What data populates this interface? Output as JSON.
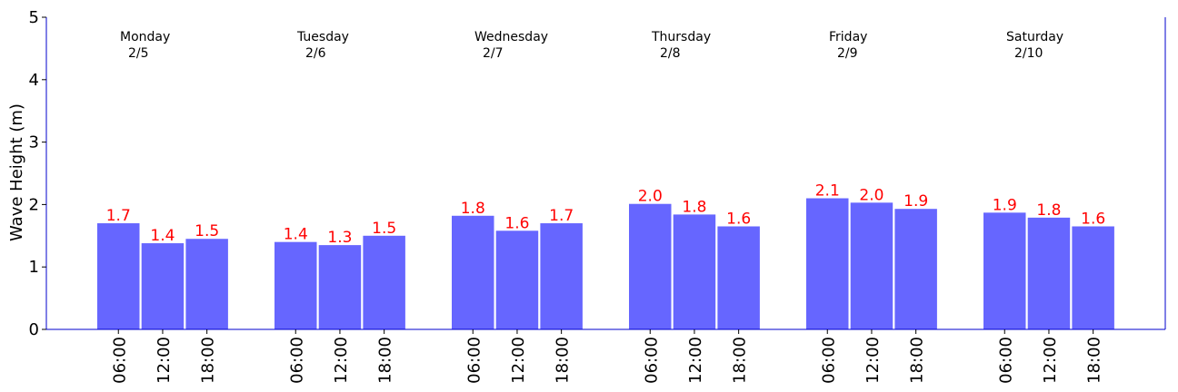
{
  "chart_data": {
    "type": "bar",
    "ylabel": "Wave Height (m)",
    "ylim": [
      0,
      5
    ],
    "yticks": [
      "0",
      "1",
      "2",
      "3",
      "4",
      "5"
    ],
    "bar_color": "#6666ff",
    "label_color": "#ff0000",
    "axis_color": "#0000cc",
    "days": [
      {
        "name": "Monday",
        "date": "2/5",
        "times": [
          "06:00",
          "12:00",
          "18:00"
        ],
        "values": [
          1.7,
          1.38,
          1.45
        ],
        "labels": [
          "1.7",
          "1.4",
          "1.5"
        ]
      },
      {
        "name": "Tuesday",
        "date": "2/6",
        "times": [
          "06:00",
          "12:00",
          "18:00"
        ],
        "values": [
          1.4,
          1.35,
          1.5
        ],
        "labels": [
          "1.4",
          "1.3",
          "1.5"
        ]
      },
      {
        "name": "Wednesday",
        "date": "2/7",
        "times": [
          "06:00",
          "12:00",
          "18:00"
        ],
        "values": [
          1.82,
          1.58,
          1.7
        ],
        "labels": [
          "1.8",
          "1.6",
          "1.7"
        ]
      },
      {
        "name": "Thursday",
        "date": "2/8",
        "times": [
          "06:00",
          "12:00",
          "18:00"
        ],
        "values": [
          2.01,
          1.84,
          1.65
        ],
        "labels": [
          "2.0",
          "1.8",
          "1.6"
        ]
      },
      {
        "name": "Friday",
        "date": "2/9",
        "times": [
          "06:00",
          "12:00",
          "18:00"
        ],
        "values": [
          2.1,
          2.03,
          1.93
        ],
        "labels": [
          "2.1",
          "2.0",
          "1.9"
        ]
      },
      {
        "name": "Saturday",
        "date": "2/10",
        "times": [
          "06:00",
          "12:00",
          "18:00"
        ],
        "values": [
          1.87,
          1.79,
          1.65
        ],
        "labels": [
          "1.9",
          "1.8",
          "1.6"
        ]
      }
    ]
  }
}
